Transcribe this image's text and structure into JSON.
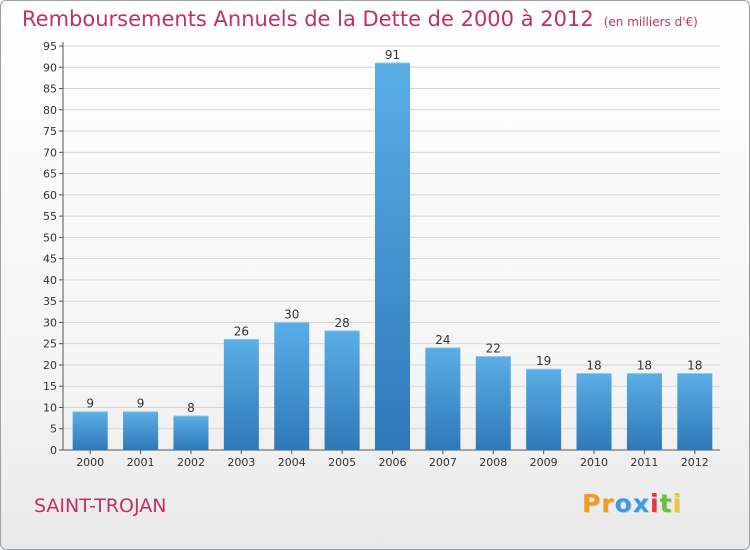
{
  "chart_data": {
    "type": "bar",
    "title": "Remboursements Annuels de la Dette de 2000 à 2012",
    "unit_note": "(en milliers d'€)",
    "categories": [
      "2000",
      "2001",
      "2002",
      "2003",
      "2004",
      "2005",
      "2006",
      "2007",
      "2008",
      "2009",
      "2010",
      "2011",
      "2012"
    ],
    "values": [
      9,
      9,
      8,
      26,
      30,
      28,
      91,
      24,
      22,
      19,
      18,
      18,
      18
    ],
    "ylim": [
      0,
      95
    ],
    "yticks": [
      0,
      5,
      10,
      15,
      20,
      25,
      30,
      35,
      40,
      45,
      50,
      55,
      60,
      65,
      70,
      75,
      80,
      85,
      90,
      95
    ],
    "grid": true,
    "bar_color_light": "#5aaee6",
    "bar_color_dark": "#2f78b8"
  },
  "place_name": "SAINT-TROJAN",
  "logo": {
    "letters": [
      "P",
      "r",
      "o",
      "x",
      "i",
      "t",
      "i"
    ],
    "colors": [
      "#f29b1d",
      "#f29b1d",
      "#3c9be0",
      "#3c9be0",
      "#e23a3a",
      "#6cbf3a",
      "#f2c230"
    ]
  },
  "colors": {
    "title": "#c0325e",
    "axis": "#555555"
  }
}
